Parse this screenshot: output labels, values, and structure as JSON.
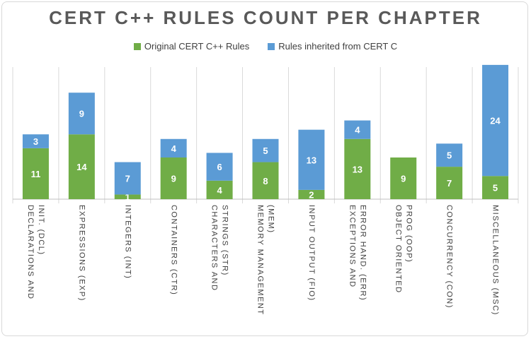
{
  "chart_data": {
    "type": "bar",
    "stacked": true,
    "title": "CERT C++ RULES COUNT PER CHAPTER",
    "categories": [
      "DECLARATIONS AND INIT. (DCL)",
      "EXPRESSIONS (EXP)",
      "INTEGERS (INT)",
      "CONTAINERS (CTR)",
      "CHARACTERS AND STRINGS (STR)",
      "MEMORY MANAGEMENT (MEM)",
      "INPUT OUTPUT (FIO)",
      "EXCEPTIONS AND ERROR HAND. (ERR)",
      "OBJECT ORIENTED PROG (OOP)",
      "CONCURRENCY (CON)",
      "MISCELLANEOUS (MSC)"
    ],
    "category_lines": [
      [
        "DECLARATIONS AND",
        "INIT. (DCL)"
      ],
      [
        "EXPRESSIONS (EXP)"
      ],
      [
        "INTEGERS (INT)"
      ],
      [
        "CONTAINERS (CTR)"
      ],
      [
        "CHARACTERS AND",
        "STRINGS (STR)"
      ],
      [
        "MEMORY MANAGEMENT",
        "(MEM)"
      ],
      [
        "INPUT OUTPUT (FIO)"
      ],
      [
        "EXCEPTIONS AND",
        "ERROR HAND. (ERR)"
      ],
      [
        "OBJECT ORIENTED",
        "PROG (OOP)"
      ],
      [
        "CONCURRENCY (CON)"
      ],
      [
        "MISCELLANEOUS (MSC)"
      ]
    ],
    "series": [
      {
        "name": "Original CERT C++ Rules",
        "color": "#70ad47",
        "values": [
          11,
          14,
          1,
          9,
          4,
          8,
          2,
          13,
          9,
          7,
          5
        ]
      },
      {
        "name": "Rules inherited from CERT C",
        "color": "#5b9bd5",
        "values": [
          3,
          9,
          7,
          4,
          6,
          5,
          13,
          4,
          0,
          5,
          24
        ]
      }
    ],
    "ylim": [
      0,
      30
    ],
    "grid": false,
    "legend_position": "top"
  }
}
